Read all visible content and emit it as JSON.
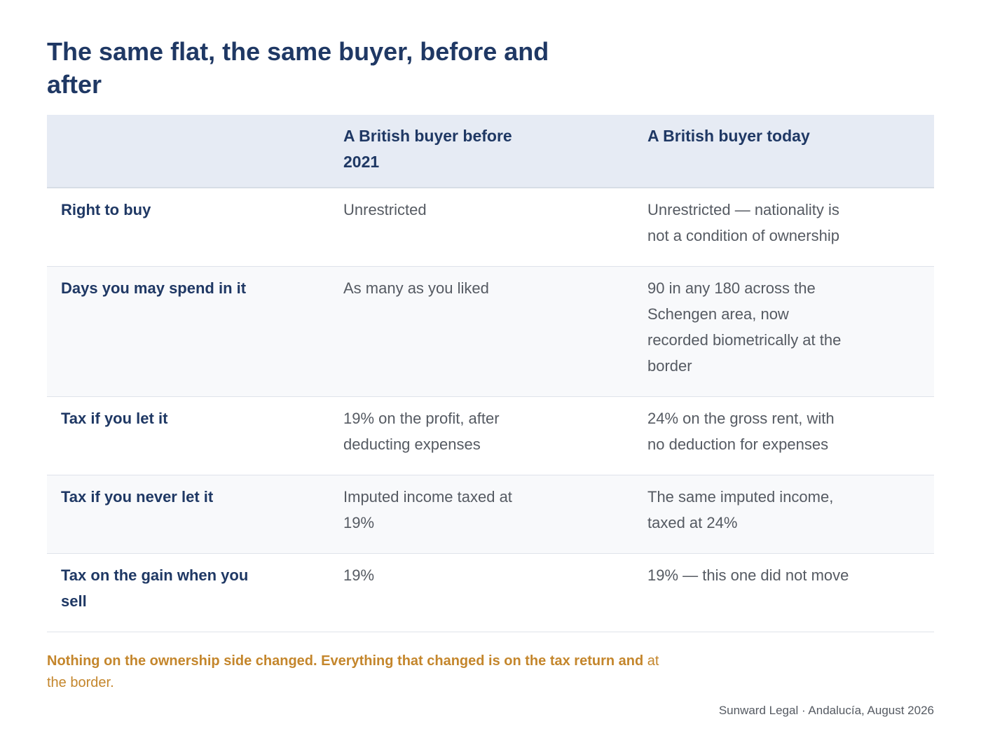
{
  "title": "The same flat, the same buyer, before and after",
  "table": {
    "headers": {
      "label": "",
      "before": "A British buyer before 2021",
      "today": "A British buyer today"
    },
    "rows": [
      {
        "label": "Right to buy",
        "before": "Unrestricted",
        "today": "Unrestricted — nationality is not a condition of ownership"
      },
      {
        "label": "Days you may spend in it",
        "before": "As many as you liked",
        "today": "90 in any 180 across the Schengen area, now recorded biometrically at the border"
      },
      {
        "label": "Tax if you let it",
        "before": "19% on the profit, after deducting expenses",
        "today": "24% on the gross rent, with no deduction for expenses"
      },
      {
        "label": "Tax if you never let it",
        "before": "Imputed income taxed at 19%",
        "today": "The same imputed income, taxed at 24%"
      },
      {
        "label": "Tax on the gain when you sell",
        "before": "19%",
        "today": "19% — this one did not move"
      }
    ]
  },
  "note": {
    "lead": "Nothing on the ownership side changed. Everything that changed is on the tax return and",
    "rest": "at the border."
  },
  "footer": "Sunward Legal · Andalucía, August 2026",
  "colors": {
    "heading": "#1f3864",
    "body_text": "#555a62",
    "header_band": "#e6ebf4",
    "note": "#c4862c"
  }
}
